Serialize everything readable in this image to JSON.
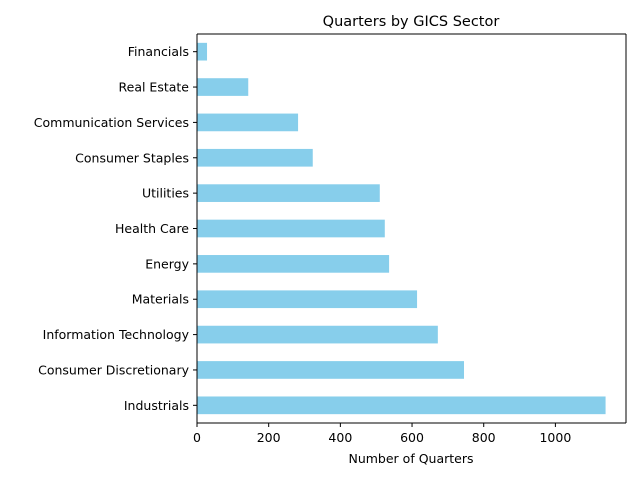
{
  "chart_data": {
    "type": "bar",
    "orientation": "horizontal",
    "title": "Quarters by GICS Sector",
    "xlabel": "Number of Quarters",
    "ylabel": "",
    "categories": [
      "Industrials",
      "Consumer Discretionary",
      "Information Technology",
      "Materials",
      "Energy",
      "Health Care",
      "Utilities",
      "Consumer Staples",
      "Communication Services",
      "Real Estate",
      "Financials"
    ],
    "values": [
      1140,
      745,
      672,
      614,
      536,
      524,
      510,
      323,
      282,
      143,
      28
    ],
    "xlim": [
      0,
      1197
    ],
    "xticks": [
      "0",
      "200",
      "400",
      "600",
      "800",
      "1000"
    ],
    "xtick_values": [
      0,
      200,
      400,
      600,
      800,
      1000
    ],
    "bar_color": "#87ceeb",
    "grid": false,
    "legend": "none"
  }
}
